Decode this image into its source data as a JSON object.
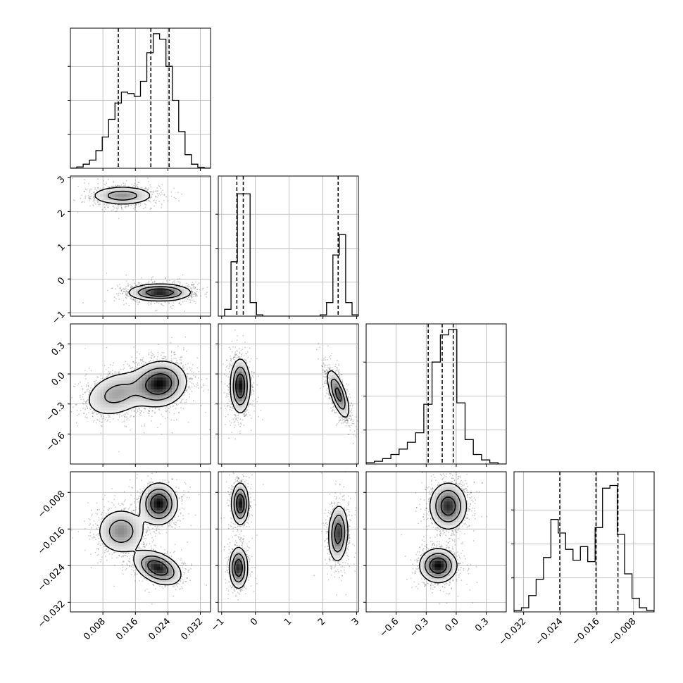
{
  "chart_data": {
    "type": "corner",
    "title": "",
    "grid": true,
    "quantile_lines": "dashed",
    "params": [
      {
        "name": "",
        "range": [
          0.0,
          0.0345
        ],
        "ticks": [
          0.008,
          0.016,
          0.024,
          0.032
        ],
        "tick_labels": [
          "0.008",
          "0.016",
          "0.024",
          "0.032"
        ],
        "quantiles": [
          0.0118,
          0.0198,
          0.0243
        ],
        "hist": [
          0.002,
          0.01,
          0.03,
          0.06,
          0.13,
          0.23,
          0.36,
          0.48,
          0.56,
          0.55,
          0.53,
          0.64,
          0.85,
          0.99,
          0.95,
          0.75,
          0.5,
          0.27,
          0.1,
          0.03,
          0.008,
          0.002
        ]
      },
      {
        "name": "",
        "range": [
          -1.1,
          3.05
        ],
        "ticks": [
          -1,
          0,
          1,
          2,
          3
        ],
        "tick_labels": [
          "−1",
          "0",
          "1",
          "2",
          "3"
        ],
        "quantiles": [
          -0.55,
          -0.36,
          2.45
        ],
        "hist": [
          0.0,
          0.05,
          0.4,
          0.9,
          0.9,
          0.1,
          0.01,
          0.0,
          0.0,
          0.0,
          0.0,
          0.0,
          0.0,
          0.0,
          0.0,
          0.0,
          0.01,
          0.1,
          0.45,
          0.6,
          0.1,
          0.01
        ]
      },
      {
        "name": "",
        "range": [
          -0.9,
          0.5
        ],
        "ticks": [
          -0.6,
          -0.3,
          0.0,
          0.3
        ],
        "tick_labels": [
          "−0.6",
          "−0.3",
          "0.0",
          "0.3"
        ],
        "quantiles": [
          -0.28,
          -0.14,
          -0.03
        ],
        "hist": [
          0.01,
          0.02,
          0.04,
          0.07,
          0.11,
          0.16,
          0.23,
          0.44,
          0.75,
          0.95,
          0.99,
          0.45,
          0.18,
          0.07,
          0.03,
          0.01,
          0.0
        ]
      },
      {
        "name": "",
        "range": [
          -0.0341,
          -0.0035
        ],
        "ticks": [
          -0.032,
          -0.024,
          -0.016,
          -0.008
        ],
        "tick_labels": [
          "−0.032",
          "−0.024",
          "−0.016",
          "−0.008"
        ],
        "quantiles": [
          -0.0241,
          -0.0162,
          -0.0114
        ],
        "hist": [
          0.01,
          0.03,
          0.12,
          0.24,
          0.4,
          0.68,
          0.58,
          0.46,
          0.38,
          0.48,
          0.37,
          0.62,
          0.91,
          0.93,
          0.57,
          0.28,
          0.1,
          0.03,
          0.01
        ]
      }
    ],
    "blobs": [
      {
        "px": 0,
        "py": 1,
        "modes": [
          {
            "mx": 0.0128,
            "my": 2.47,
            "sx": 0.0039,
            "sy": 0.14,
            "rho": 0.0,
            "w": 0.4
          },
          {
            "mx": 0.022,
            "my": -0.4,
            "sx": 0.0037,
            "sy": 0.12,
            "rho": 0.0,
            "w": 0.6
          }
        ]
      },
      {
        "px": 0,
        "py": 2,
        "modes": [
          {
            "mx": 0.0115,
            "my": -0.2,
            "sx": 0.0042,
            "sy": 0.12,
            "rho": 0.3,
            "w": 0.4
          },
          {
            "mx": 0.022,
            "my": -0.1,
            "sx": 0.0032,
            "sy": 0.11,
            "rho": 0.1,
            "w": 0.6
          }
        ]
      },
      {
        "px": 0,
        "py": 3,
        "modes": [
          {
            "mx": 0.0125,
            "my": -0.0165,
            "sx": 0.003,
            "sy": 0.0025,
            "rho": 0.0,
            "w": 0.3
          },
          {
            "mx": 0.0218,
            "my": -0.0105,
            "sx": 0.0022,
            "sy": 0.0022,
            "rho": 0.0,
            "w": 0.35
          },
          {
            "mx": 0.0215,
            "my": -0.0245,
            "sx": 0.0028,
            "sy": 0.0018,
            "rho": -0.4,
            "w": 0.35
          }
        ]
      },
      {
        "px": 1,
        "py": 2,
        "modes": [
          {
            "mx": -0.45,
            "my": -0.12,
            "sx": 0.14,
            "sy": 0.13,
            "rho": 0.0,
            "w": 0.55
          },
          {
            "mx": 2.45,
            "my": -0.2,
            "sx": 0.16,
            "sy": 0.12,
            "rho": -0.7,
            "w": 0.45
          }
        ]
      },
      {
        "px": 1,
        "py": 3,
        "modes": [
          {
            "mx": -0.45,
            "my": -0.0105,
            "sx": 0.12,
            "sy": 0.0022,
            "rho": 0.0,
            "w": 0.3
          },
          {
            "mx": -0.5,
            "my": -0.0245,
            "sx": 0.13,
            "sy": 0.0022,
            "rho": 0.0,
            "w": 0.3
          },
          {
            "mx": 2.45,
            "my": -0.017,
            "sx": 0.14,
            "sy": 0.003,
            "rho": 0.1,
            "w": 0.4
          }
        ]
      },
      {
        "px": 2,
        "py": 3,
        "modes": [
          {
            "mx": -0.08,
            "my": -0.011,
            "sx": 0.09,
            "sy": 0.0025,
            "rho": 0.0,
            "w": 0.55
          },
          {
            "mx": -0.18,
            "my": -0.024,
            "sx": 0.09,
            "sy": 0.0018,
            "rho": 0.0,
            "w": 0.45
          }
        ]
      }
    ]
  }
}
